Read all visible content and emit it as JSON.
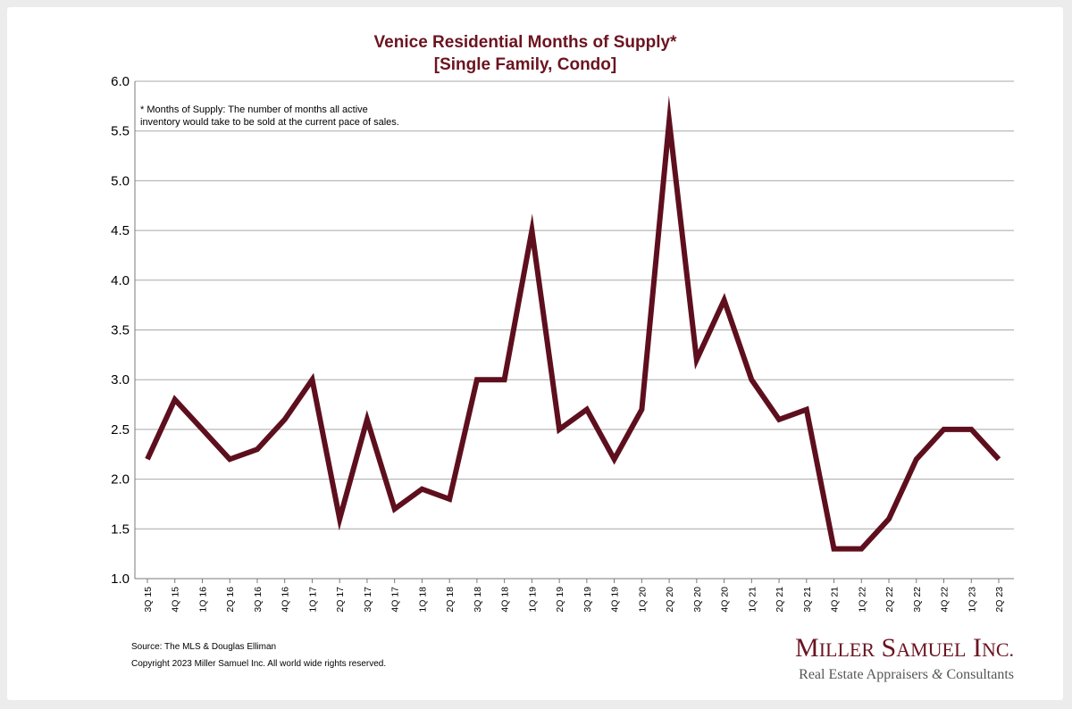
{
  "chart_data": {
    "type": "line",
    "title": "Venice Residential Months of Supply*",
    "subtitle": "[Single Family, Condo]",
    "xlabel": "",
    "ylabel": "",
    "ylim": [
      1.0,
      6.0
    ],
    "yticks": [
      "1.0",
      "1.5",
      "2.0",
      "2.5",
      "3.0",
      "3.5",
      "4.0",
      "4.5",
      "5.0",
      "5.5",
      "6.0"
    ],
    "grid": true,
    "color": "#5e0f1d",
    "categories": [
      "3Q 15",
      "4Q 15",
      "1Q 16",
      "2Q 16",
      "3Q 16",
      "4Q 16",
      "1Q 17",
      "2Q 17",
      "3Q 17",
      "4Q 17",
      "1Q 18",
      "2Q 18",
      "3Q 18",
      "4Q 18",
      "1Q 19",
      "2Q 19",
      "3Q 19",
      "4Q 19",
      "1Q 20",
      "2Q 20",
      "3Q 20",
      "4Q 20",
      "1Q 21",
      "2Q 21",
      "3Q 21",
      "4Q 21",
      "1Q 22",
      "2Q 22",
      "3Q 22",
      "4Q 22",
      "1Q 23",
      "2Q 23"
    ],
    "values": [
      2.2,
      2.8,
      2.5,
      2.2,
      2.3,
      2.6,
      3.0,
      1.6,
      2.6,
      1.7,
      1.9,
      1.8,
      3.0,
      3.0,
      4.5,
      2.5,
      2.7,
      2.2,
      2.7,
      5.6,
      3.2,
      3.8,
      3.0,
      2.6,
      2.7,
      1.3,
      1.3,
      1.6,
      2.2,
      2.5,
      2.5,
      2.2
    ],
    "annotation": [
      "* Months of Supply: The number of months all active",
      "inventory would take to be sold at the current pace of sales."
    ]
  },
  "footer": {
    "source": "Source: The MLS & Douglas Elliman",
    "copyright": "Copyright 2023 Miller Samuel Inc.  All world wide rights reserved."
  },
  "logo": {
    "name": "Miller Samuel Inc.",
    "tagline_part1": "Real Estate Appraisers ",
    "tagline_amp": "&",
    "tagline_part2": " Consultants"
  }
}
